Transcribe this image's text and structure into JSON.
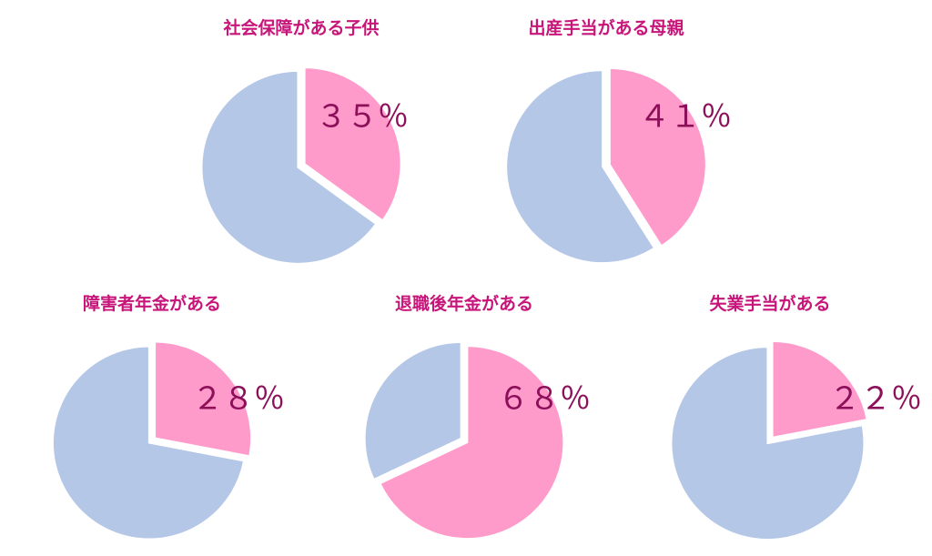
{
  "colors": {
    "highlight": "#FF9BCB",
    "rest": "#B4C7E7",
    "title": "#C7157A",
    "label": "#8C0F5A"
  },
  "chart_data": [
    {
      "type": "pie",
      "title": "社会保障がある子供",
      "value": 35,
      "label": "３５％"
    },
    {
      "type": "pie",
      "title": "出産手当がある母親",
      "value": 41,
      "label": "４１％"
    },
    {
      "type": "pie",
      "title": "障害者年金がある",
      "value": 28,
      "label": "２８％"
    },
    {
      "type": "pie",
      "title": "退職後年金がある",
      "value": 68,
      "label": "６８％"
    },
    {
      "type": "pie",
      "title": "失業手当がある",
      "value": 22,
      "label": "２２％"
    }
  ]
}
